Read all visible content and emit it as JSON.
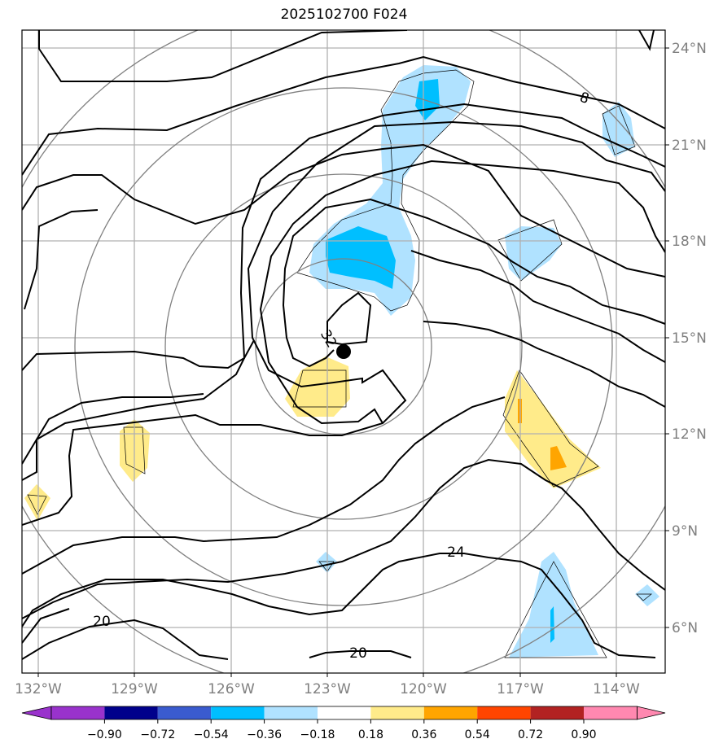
{
  "title": "2025102700 F024",
  "axes": {
    "lon_labels": [
      "132°W",
      "129°W",
      "126°W",
      "123°W",
      "120°W",
      "117°W",
      "114°W"
    ],
    "lat_labels": [
      "24°N",
      "21°N",
      "18°N",
      "15°N",
      "12°N",
      "9°N",
      "6°N"
    ]
  },
  "contour_labels": [
    "8",
    "32",
    "24",
    "20",
    "20"
  ],
  "colorbar": {
    "tick_labels": [
      "−0.90",
      "−0.72",
      "−0.54",
      "−0.36",
      "−0.18",
      "0.18",
      "0.36",
      "0.54",
      "0.72",
      "0.90"
    ],
    "colors": [
      "#9932cc",
      "#00008b",
      "#3a5bcf",
      "#00bfff",
      "#b0e2ff",
      "#ffffff",
      "#ffeb8a",
      "#ffa500",
      "#ff4500",
      "#b22222",
      "#ff88b0"
    ]
  },
  "colors": {
    "neg_light": "#b0e2ff",
    "neg_mid": "#00bfff",
    "pos_light": "#ffeb8a",
    "pos_mid": "#ffa500",
    "grid": "#b0b0b0",
    "range_ring": "#808080",
    "axis_text": "#7f7f7f"
  },
  "center_marker": "storm-center-dot"
}
